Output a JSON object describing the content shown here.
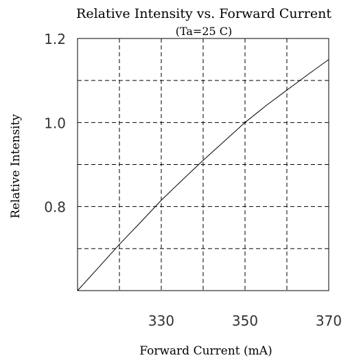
{
  "chart_data": {
    "type": "line",
    "title": "Relative Intensity vs. Forward Current",
    "subtitle": "(Ta=25  C)",
    "xlabel": "Forward Current (mA)",
    "ylabel": "Relative Intensity",
    "xlim": [
      310,
      370
    ],
    "ylim": [
      0.6,
      1.2
    ],
    "x_ticks": [
      330,
      350,
      370
    ],
    "x_tick_labels": [
      "330",
      "350",
      "370"
    ],
    "x_grid": [
      320,
      330,
      340,
      350,
      360
    ],
    "y_ticks": [
      0.8,
      1.0,
      1.2
    ],
    "y_tick_labels": [
      "0.8",
      "1.0",
      "1.2"
    ],
    "y_grid": [
      0.7,
      0.8,
      0.9,
      1.0,
      1.1
    ],
    "grid": true,
    "series": [
      {
        "x": [
          310,
          315,
          320,
          325,
          330,
          335,
          340,
          345,
          350,
          355,
          360,
          365,
          370
        ],
        "y": [
          0.6,
          0.655,
          0.71,
          0.762,
          0.815,
          0.863,
          0.91,
          0.955,
          1.0,
          1.04,
          1.077,
          1.114,
          1.15
        ]
      }
    ]
  }
}
